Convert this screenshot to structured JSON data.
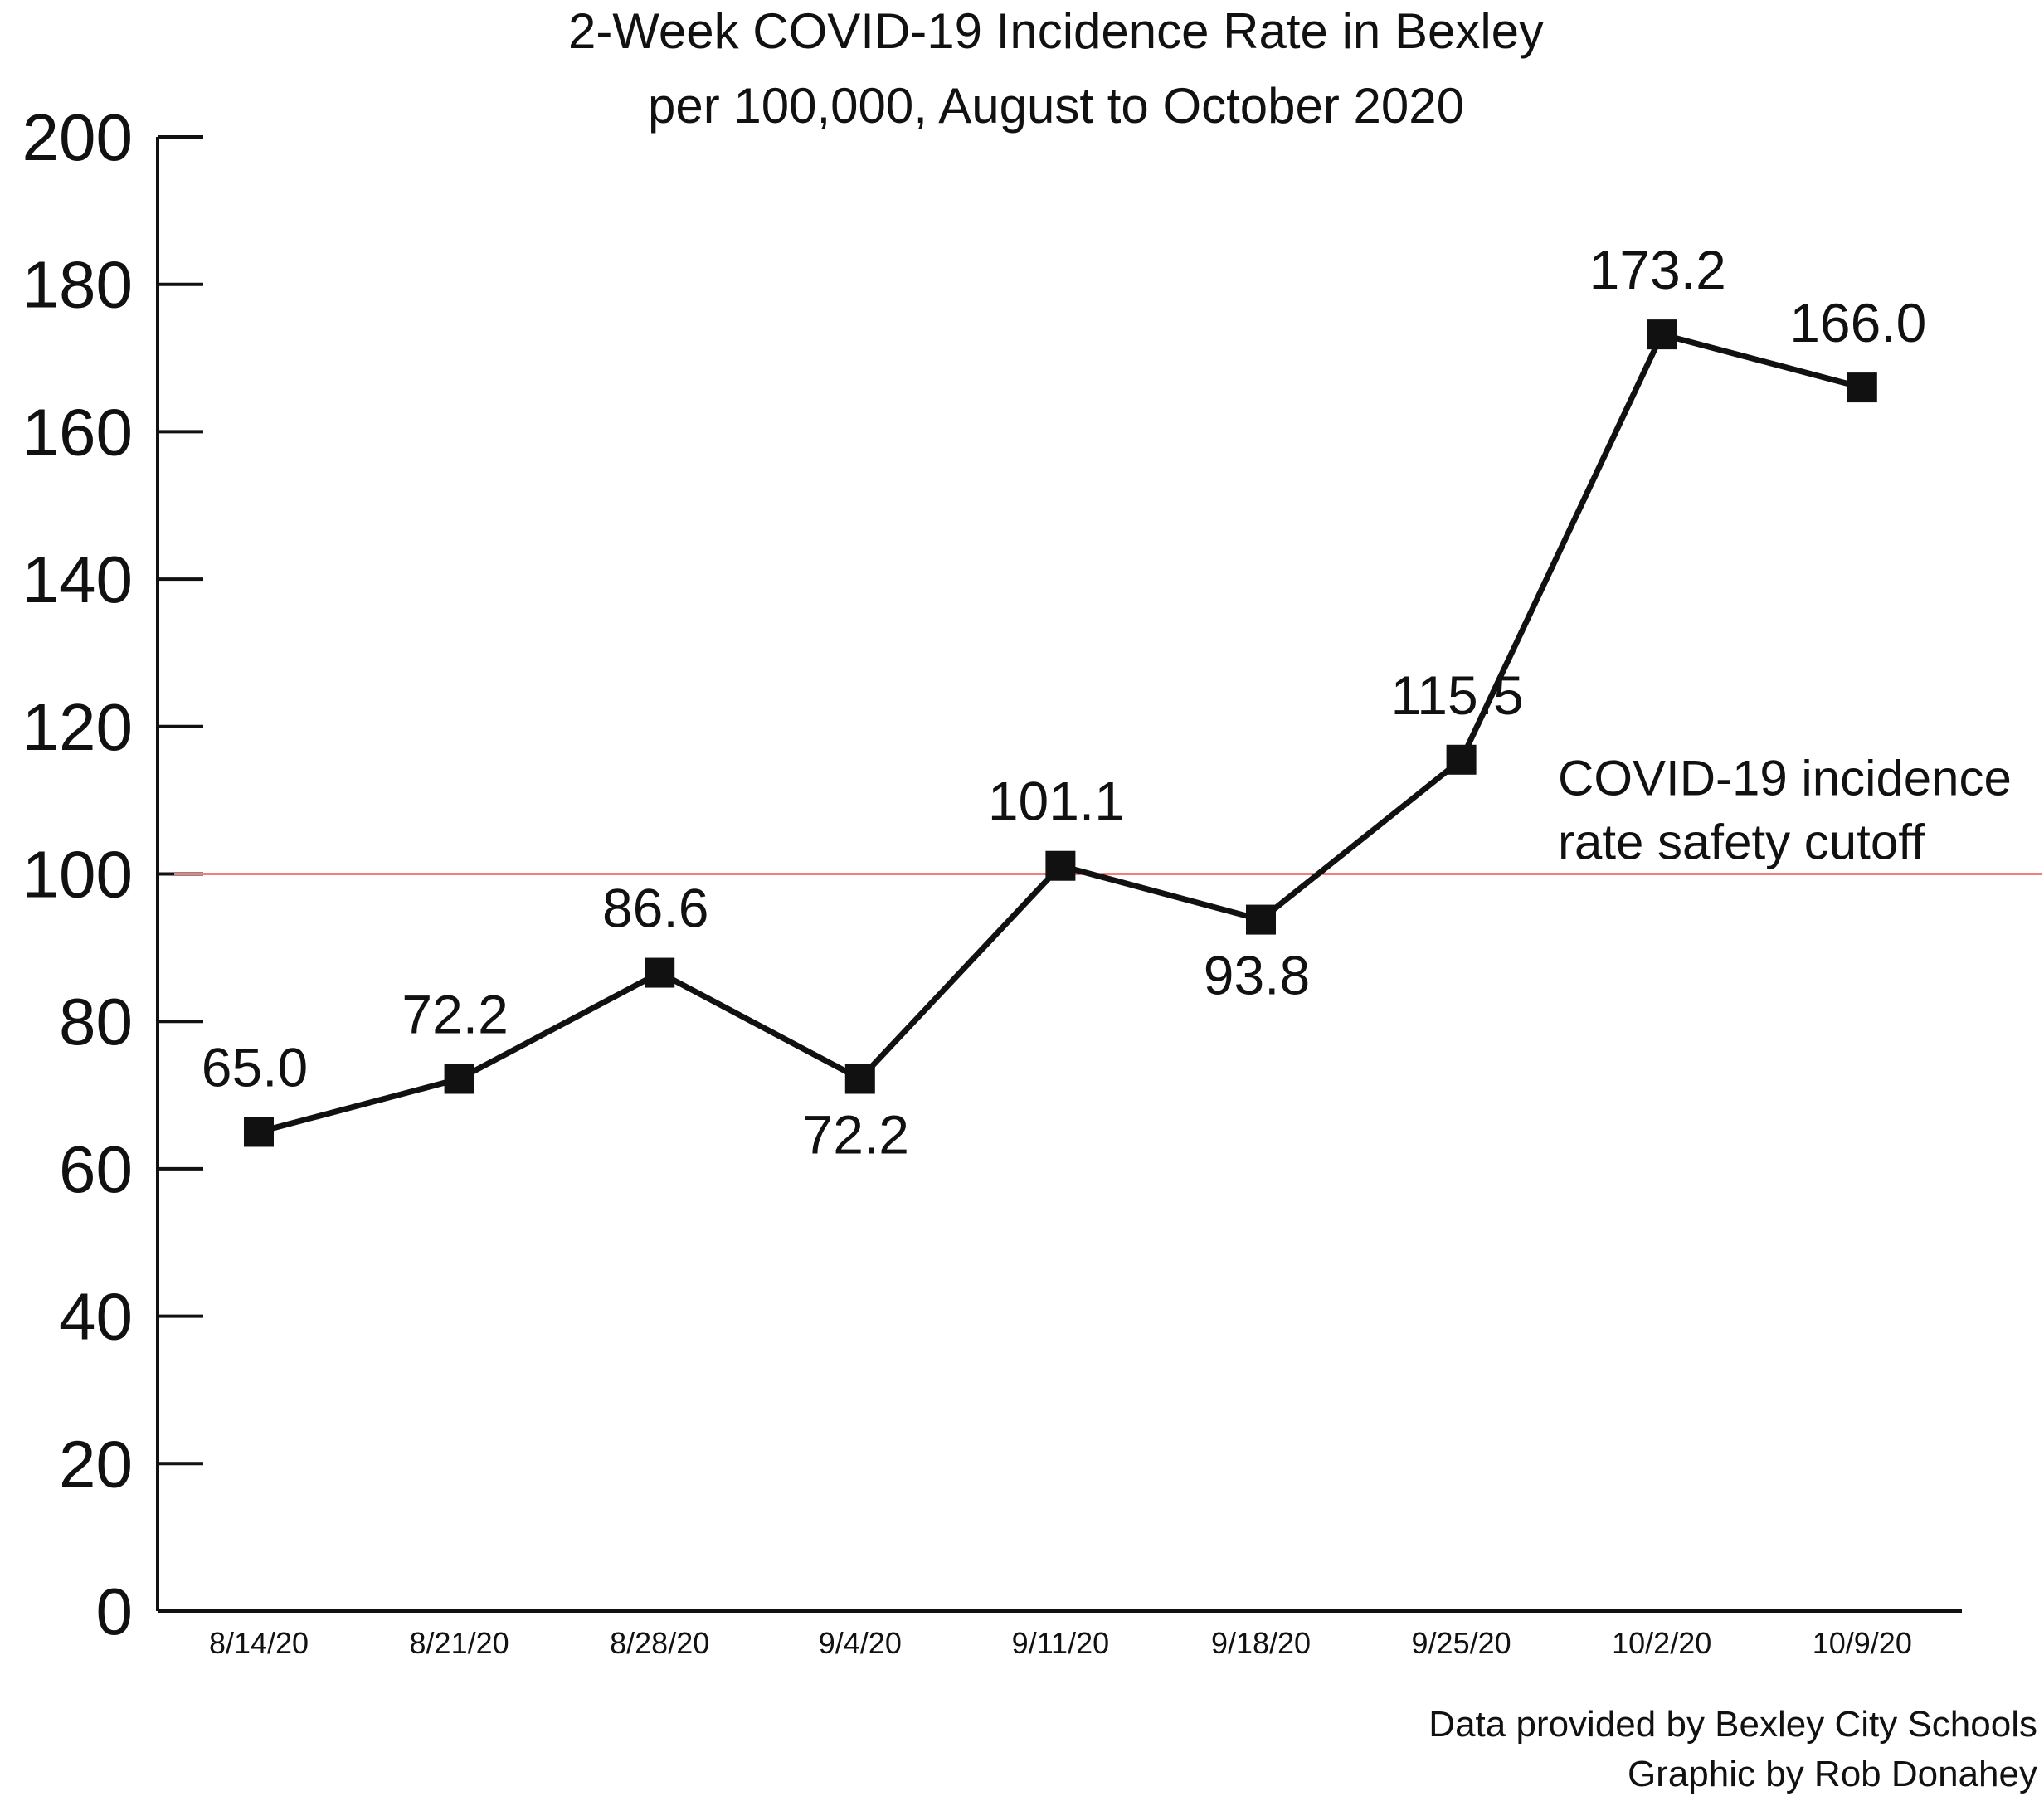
{
  "chart_data": {
    "type": "line",
    "title": "2-Week COVID-19 Incidence Rate in Bexley",
    "subtitle": "per 100,000, August to October 2020",
    "xlabel": "",
    "ylabel": "",
    "categories": [
      "8/14/20",
      "8/21/20",
      "8/28/20",
      "9/4/20",
      "9/11/20",
      "9/18/20",
      "9/25/20",
      "10/2/20",
      "10/9/20"
    ],
    "series": [
      {
        "values": [
          65.0,
          72.2,
          86.6,
          72.2,
          101.1,
          93.8,
          115.5,
          173.2,
          166.0
        ],
        "value_labels": [
          "65.0",
          "72.2",
          "86.6",
          "72.2",
          "101.1",
          "93.8",
          "115.5",
          "173.2",
          "166.0"
        ],
        "label_positions": [
          "above",
          "above",
          "above",
          "below",
          "above",
          "below",
          "above",
          "above",
          "above"
        ],
        "color": "#111111",
        "marker": "square"
      }
    ],
    "ylim": [
      0,
      200
    ],
    "yticks": [
      "0",
      "20",
      "40",
      "60",
      "80",
      "100",
      "120",
      "140",
      "160",
      "180",
      "200"
    ],
    "grid": false,
    "reference_line": {
      "value": 100,
      "color": "#f08080",
      "label_lines": [
        "COVID-19 incidence",
        "rate safety cutoff"
      ]
    }
  },
  "credits": [
    "Data provided by Bexley City Schools",
    "Graphic by Rob Donahey"
  ]
}
